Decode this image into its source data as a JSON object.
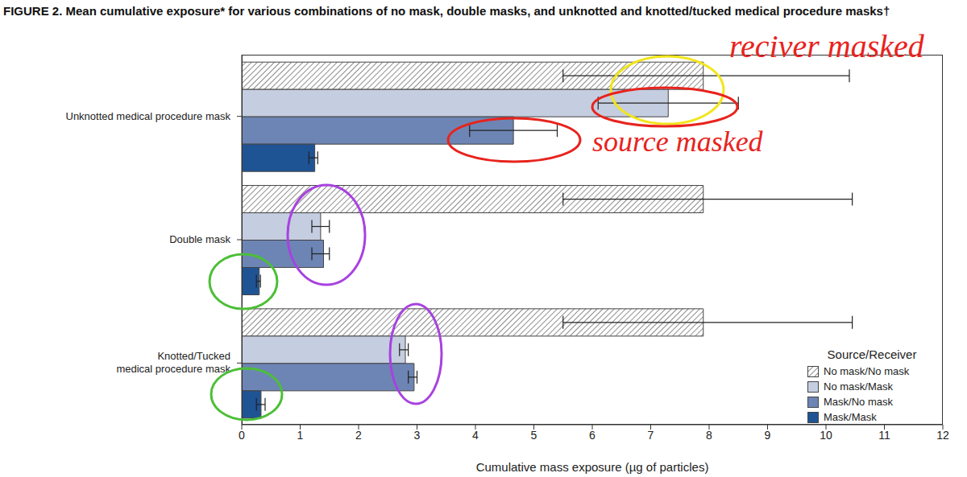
{
  "chart_data": {
    "type": "bar",
    "orientation": "horizontal",
    "title": "FIGURE 2. Mean cumulative exposure* for various combinations of no mask, double masks, and unknotted and knotted/tucked medical procedure masks†",
    "x_label": "Cumulative mass exposure (µg of particles)",
    "legend_title": "Source/Receiver",
    "legend": "lower right",
    "grid": false,
    "categories": [
      "Unknotted medical procedure mask",
      "Double mask",
      "Knotted/Tucked\nmedical procedure mask"
    ],
    "series": [
      {
        "name": "No mask/No mask",
        "color": "#8c8c8c",
        "values": [
          7.9,
          7.9,
          7.9
        ],
        "errors": [
          [
            2.4,
            2.5
          ],
          [
            2.4,
            2.55
          ],
          [
            2.4,
            2.55
          ]
        ]
      },
      {
        "name": "No mask/Mask",
        "color": "#c5cde0",
        "values": [
          7.3,
          1.35,
          2.8
        ],
        "errors": [
          [
            1.2,
            1.2
          ],
          [
            0.15,
            0.15
          ],
          [
            0.1,
            0.05
          ]
        ]
      },
      {
        "name": "Mask/No mask",
        "color": "#6d85b4",
        "values": [
          4.65,
          1.4,
          2.95
        ],
        "errors": [
          [
            0.75,
            0.75
          ],
          [
            0.2,
            0.1
          ],
          [
            0.1,
            0.05
          ]
        ]
      },
      {
        "name": "Mask/Mask",
        "color": "#1f5494",
        "values": [
          1.25,
          0.3,
          0.33
        ],
        "errors": [
          [
            0.1,
            0.05
          ],
          [
            0.05,
            0.02
          ],
          [
            0.08,
            0.07
          ]
        ]
      }
    ],
    "xlim": [
      0,
      12
    ],
    "xticks": [
      0,
      1,
      2,
      3,
      4,
      5,
      6,
      7,
      8,
      9,
      10,
      11,
      12
    ],
    "annotations": [
      {
        "text": "reciver masked",
        "color": "#e8231d"
      },
      {
        "text": "source masked",
        "color": "#e8231d"
      }
    ]
  }
}
